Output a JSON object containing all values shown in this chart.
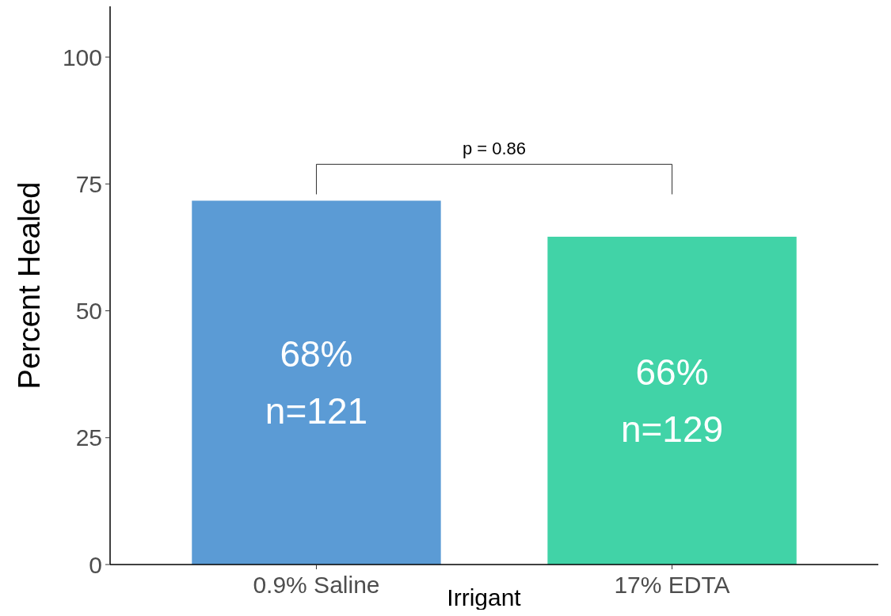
{
  "chart_data": {
    "type": "bar",
    "xlabel": "Irrigant",
    "ylabel": "Percent Healed",
    "categories": [
      "0.9% Saline",
      "17% EDTA"
    ],
    "values": [
      71.7,
      64.6
    ],
    "colors": [
      "#5b9bd5",
      "#41d3a7"
    ],
    "ylim": [
      0,
      110
    ],
    "yticks": [
      0,
      25,
      50,
      75,
      100
    ],
    "grid": false,
    "annotations": [
      "p = 0.86",
      "68%\nn=121",
      "66%\nn=129"
    ]
  }
}
